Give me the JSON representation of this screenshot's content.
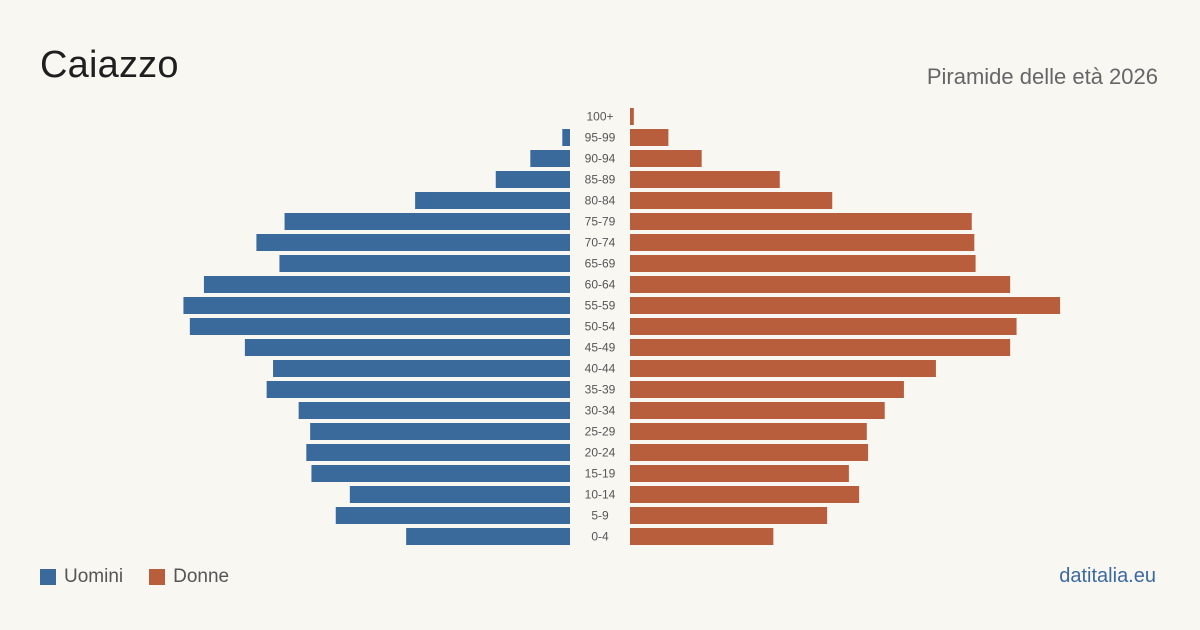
{
  "header": {
    "title": "Caiazzo",
    "subtitle": "Piramide delle età 2026"
  },
  "legend": {
    "men_label": "Uomini",
    "women_label": "Donne"
  },
  "source": "datitalia.eu",
  "colors": {
    "men": "#3a6a9c",
    "women": "#b85e3d",
    "background": "#f9f7f2"
  },
  "chart_data": {
    "type": "bar",
    "orientation": "horizontal-pyramid",
    "categories": [
      "100+",
      "95-99",
      "90-94",
      "85-89",
      "80-84",
      "75-79",
      "70-74",
      "65-69",
      "60-64",
      "55-59",
      "50-54",
      "45-49",
      "40-44",
      "35-39",
      "30-34",
      "25-29",
      "20-24",
      "15-19",
      "10-14",
      "5-9",
      "0-4"
    ],
    "series": [
      {
        "name": "Uomini",
        "values": [
          0,
          6,
          31,
          58,
          121,
          223,
          245,
          227,
          286,
          302,
          297,
          254,
          232,
          237,
          212,
          203,
          206,
          202,
          172,
          183,
          128
        ]
      },
      {
        "name": "Donne",
        "values": [
          3,
          30,
          56,
          117,
          158,
          267,
          269,
          270,
          297,
          336,
          302,
          297,
          239,
          214,
          199,
          185,
          186,
          171,
          179,
          154,
          112
        ]
      }
    ],
    "legend_position": "bottom-left",
    "grid": false
  }
}
